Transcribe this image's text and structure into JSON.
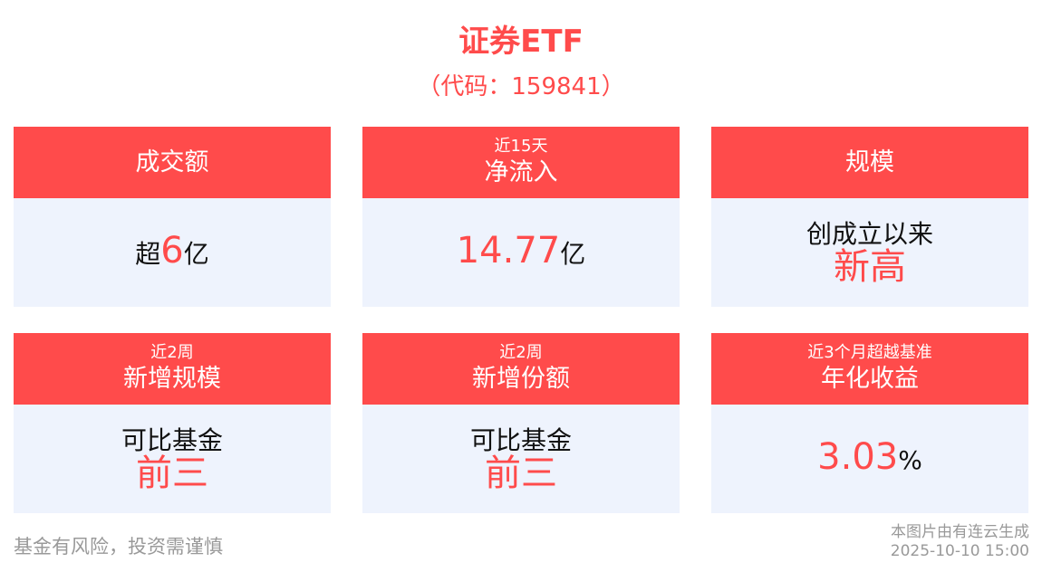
{
  "header": {
    "title": "证券ETF",
    "code": "（代码：159841）"
  },
  "colors": {
    "accent": "#FF4B4B",
    "card_body": "#EEF3FD",
    "footer_text": "#999999"
  },
  "cards": [
    {
      "small": "",
      "label": "成交额",
      "lines": [
        [
          {
            "text": "超",
            "red": false
          },
          {
            "text": "6",
            "red": true,
            "big": true
          },
          {
            "text": "亿",
            "red": false
          }
        ]
      ]
    },
    {
      "small": "近15天",
      "label": "净流入",
      "lines": [
        [
          {
            "text": "14.77",
            "red": true,
            "big": true
          },
          {
            "text": "亿",
            "red": false
          }
        ]
      ]
    },
    {
      "small": "",
      "label": "规模",
      "lines": [
        [
          {
            "text": "创成立以来",
            "red": false
          }
        ],
        [
          {
            "text": "新高",
            "red": true,
            "big": true
          }
        ]
      ]
    },
    {
      "small": "近2周",
      "label": "新增规模",
      "lines": [
        [
          {
            "text": "可比基金",
            "red": false
          }
        ],
        [
          {
            "text": "前三",
            "red": true,
            "big": true
          }
        ]
      ]
    },
    {
      "small": "近2周",
      "label": "新增份额",
      "lines": [
        [
          {
            "text": "可比基金",
            "red": false
          }
        ],
        [
          {
            "text": "前三",
            "red": true,
            "big": true
          }
        ]
      ]
    },
    {
      "small": "近3个月超越基准",
      "label": "年化收益",
      "lines": [
        [
          {
            "text": "3.03",
            "red": true,
            "big": true
          },
          {
            "text": "%",
            "red": false
          }
        ]
      ]
    }
  ],
  "footer": {
    "risk": "基金有风险，投资需谨慎",
    "generated_by": "本图片由有连云生成",
    "timestamp": "2025-10-10 15:00"
  }
}
